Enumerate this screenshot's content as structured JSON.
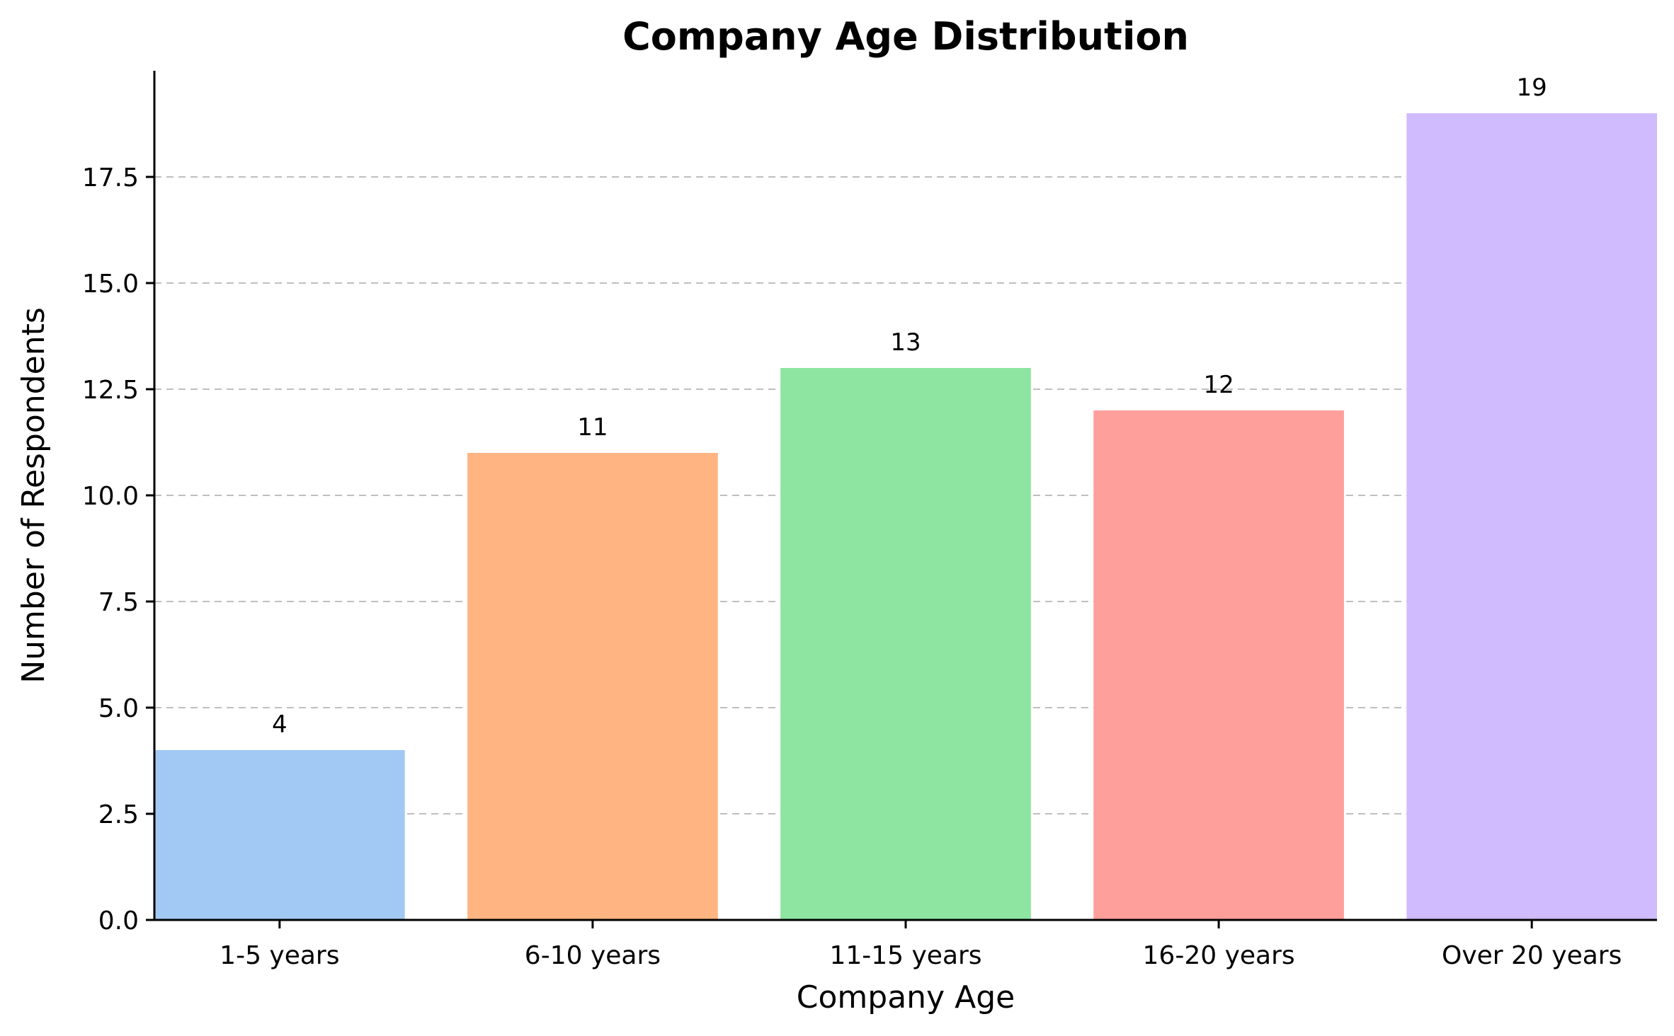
{
  "chart_data": {
    "type": "bar",
    "title": "Company Age Distribution",
    "xlabel": "Company Age",
    "ylabel": "Number of Respondents",
    "categories": [
      "1-5 years",
      "6-10 years",
      "11-15 years",
      "16-20 years",
      "Over 20 years"
    ],
    "values": [
      4,
      11,
      13,
      12,
      19
    ],
    "value_labels": [
      "4",
      "11",
      "13",
      "12",
      "19"
    ],
    "colors": [
      "#a1c9f4",
      "#ffb482",
      "#8de5a1",
      "#ff9f9b",
      "#d0bbff"
    ],
    "ylim": [
      0,
      20
    ],
    "yticks": [
      0,
      2.5,
      5,
      7.5,
      10,
      12.5,
      15,
      17.5
    ],
    "ytick_labels": [
      "0.0",
      "2.5",
      "5.0",
      "7.5",
      "10.0",
      "12.5",
      "15.0",
      "17.5"
    ],
    "grid": "y-dashed",
    "legend": "none"
  }
}
